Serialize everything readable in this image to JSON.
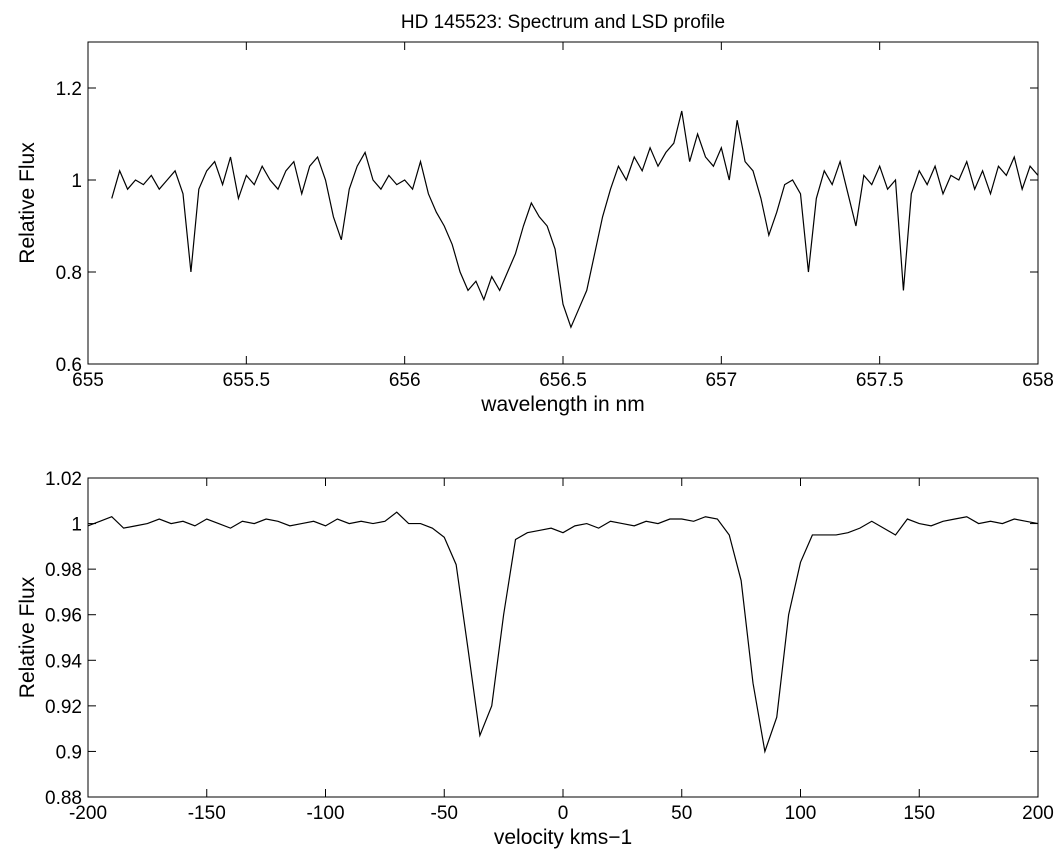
{
  "chart_data": [
    {
      "type": "line",
      "title": "HD 145523: Spectrum and LSD profile",
      "xlabel": "wavelength in nm",
      "ylabel": "Relative Flux",
      "xlim": [
        655,
        658
      ],
      "xticks": [
        655,
        655.5,
        656,
        656.5,
        657,
        657.5,
        658
      ],
      "ylim": [
        0.6,
        1.3
      ],
      "yticks": [
        0.6,
        0.8,
        1,
        1.2
      ],
      "grid": false,
      "series": [
        {
          "color": "#000000",
          "x": [
            655.075,
            655.1,
            655.125,
            655.15,
            655.175,
            655.2,
            655.225,
            655.25,
            655.275,
            655.3,
            655.325,
            655.35,
            655.375,
            655.4,
            655.425,
            655.45,
            655.475,
            655.5,
            655.525,
            655.55,
            655.575,
            655.6,
            655.625,
            655.65,
            655.675,
            655.7,
            655.725,
            655.75,
            655.775,
            655.8,
            655.825,
            655.85,
            655.875,
            655.9,
            655.925,
            655.95,
            655.975,
            656.0,
            656.025,
            656.05,
            656.075,
            656.1,
            656.125,
            656.15,
            656.175,
            656.2,
            656.225,
            656.25,
            656.275,
            656.3,
            656.325,
            656.35,
            656.375,
            656.4,
            656.425,
            656.45,
            656.475,
            656.5,
            656.525,
            656.55,
            656.575,
            656.6,
            656.625,
            656.65,
            656.675,
            656.7,
            656.725,
            656.75,
            656.775,
            656.8,
            656.825,
            656.85,
            656.875,
            656.9,
            656.925,
            656.95,
            656.975,
            657.0,
            657.025,
            657.05,
            657.075,
            657.1,
            657.125,
            657.15,
            657.175,
            657.2,
            657.225,
            657.25,
            657.275,
            657.3,
            657.325,
            657.35,
            657.375,
            657.4,
            657.425,
            657.45,
            657.475,
            657.5,
            657.525,
            657.55,
            657.575,
            657.6,
            657.625,
            657.65,
            657.675,
            657.7,
            657.725,
            657.75,
            657.775,
            657.8,
            657.825,
            657.85,
            657.875,
            657.9,
            657.925,
            657.95,
            657.975,
            658.0
          ],
          "values": [
            0.96,
            1.02,
            0.98,
            1.0,
            0.99,
            1.01,
            0.98,
            1.0,
            1.02,
            0.97,
            0.8,
            0.98,
            1.02,
            1.04,
            0.99,
            1.05,
            0.96,
            1.01,
            0.99,
            1.03,
            1.0,
            0.98,
            1.02,
            1.04,
            0.97,
            1.03,
            1.05,
            1.0,
            0.92,
            0.87,
            0.98,
            1.03,
            1.06,
            1.0,
            0.98,
            1.01,
            0.99,
            1.0,
            0.98,
            1.04,
            0.97,
            0.93,
            0.9,
            0.86,
            0.8,
            0.76,
            0.78,
            0.74,
            0.79,
            0.76,
            0.8,
            0.84,
            0.9,
            0.95,
            0.92,
            0.9,
            0.85,
            0.73,
            0.68,
            0.72,
            0.76,
            0.84,
            0.92,
            0.98,
            1.03,
            1.0,
            1.05,
            1.02,
            1.07,
            1.03,
            1.06,
            1.08,
            1.15,
            1.04,
            1.1,
            1.05,
            1.03,
            1.07,
            1.0,
            1.13,
            1.04,
            1.02,
            0.96,
            0.88,
            0.93,
            0.99,
            1.0,
            0.97,
            0.8,
            0.96,
            1.02,
            0.99,
            1.04,
            0.97,
            0.9,
            1.01,
            0.99,
            1.03,
            0.98,
            1.0,
            0.76,
            0.97,
            1.02,
            0.99,
            1.03,
            0.97,
            1.01,
            1.0,
            1.04,
            0.98,
            1.02,
            0.97,
            1.03,
            1.01,
            1.05,
            0.98,
            1.03,
            1.01
          ]
        }
      ]
    },
    {
      "type": "line",
      "xlabel": "velocity kms−1",
      "ylabel": "Relative Flux",
      "xlim": [
        -200,
        200
      ],
      "xticks": [
        -200,
        -150,
        -100,
        -50,
        0,
        50,
        100,
        150,
        200
      ],
      "ylim": [
        0.88,
        1.02
      ],
      "yticks": [
        0.88,
        0.9,
        0.92,
        0.94,
        0.96,
        0.98,
        1,
        1.02
      ],
      "grid": false,
      "series": [
        {
          "color": "#000000",
          "x": [
            -200,
            -195,
            -190,
            -185,
            -180,
            -175,
            -170,
            -165,
            -160,
            -155,
            -150,
            -145,
            -140,
            -135,
            -130,
            -125,
            -120,
            -115,
            -110,
            -105,
            -100,
            -95,
            -90,
            -85,
            -80,
            -75,
            -70,
            -65,
            -60,
            -55,
            -50,
            -45,
            -40,
            -35,
            -30,
            -25,
            -20,
            -15,
            -10,
            -5,
            0,
            5,
            10,
            15,
            20,
            25,
            30,
            35,
            40,
            45,
            50,
            55,
            60,
            65,
            70,
            75,
            80,
            85,
            90,
            95,
            100,
            105,
            110,
            115,
            120,
            125,
            130,
            135,
            140,
            145,
            150,
            155,
            160,
            165,
            170,
            175,
            180,
            185,
            190,
            195,
            200
          ],
          "values": [
            0.999,
            1.001,
            1.003,
            0.998,
            0.999,
            1.0,
            1.002,
            1.0,
            1.001,
            0.999,
            1.002,
            1.0,
            0.998,
            1.001,
            1.0,
            1.002,
            1.001,
            0.999,
            1.0,
            1.001,
            0.999,
            1.002,
            1.0,
            1.001,
            1.0,
            1.001,
            1.005,
            1.0,
            1.0,
            0.998,
            0.994,
            0.982,
            0.945,
            0.907,
            0.92,
            0.96,
            0.993,
            0.996,
            0.997,
            0.998,
            0.996,
            0.999,
            1.0,
            0.998,
            1.001,
            1.0,
            0.999,
            1.001,
            1.0,
            1.002,
            1.002,
            1.001,
            1.003,
            1.002,
            0.995,
            0.975,
            0.93,
            0.9,
            0.915,
            0.96,
            0.983,
            0.995,
            0.995,
            0.995,
            0.996,
            0.998,
            1.001,
            0.998,
            0.995,
            1.002,
            1.0,
            0.999,
            1.001,
            1.002,
            1.003,
            1.0,
            1.001,
            1.0,
            1.002,
            1.001,
            1.0
          ]
        }
      ]
    }
  ]
}
